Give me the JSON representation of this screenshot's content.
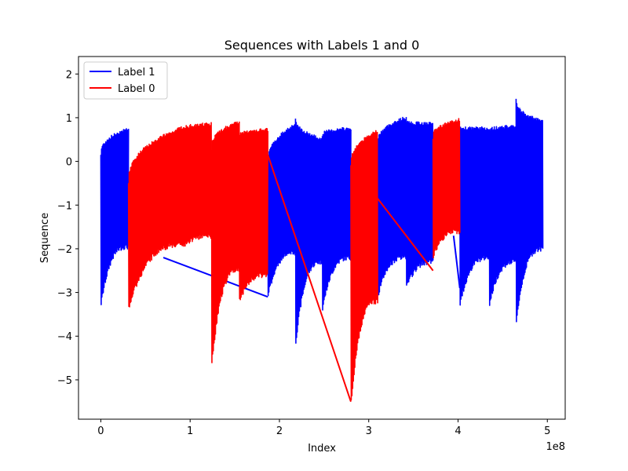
{
  "chart_data": {
    "type": "line",
    "title": "Sequences with Labels 1 and 0",
    "xlabel": "Index",
    "ylabel": "Sequence",
    "x_offset_text": "1e8",
    "xlim": [
      -0.25,
      5.2
    ],
    "ylim": [
      -5.9,
      2.4
    ],
    "x_unit_multiplier": 100000000,
    "xticks": [
      0,
      1,
      2,
      3,
      4,
      5
    ],
    "xtick_labels": [
      "0",
      "1",
      "2",
      "3",
      "4",
      "5"
    ],
    "yticks": [
      2,
      1,
      0,
      -1,
      -2,
      -3,
      -4,
      -5
    ],
    "ytick_labels": [
      "2",
      "1",
      "0",
      "−1",
      "−2",
      "−3",
      "−4",
      "−5"
    ],
    "grid": false,
    "legend_position": "top-left",
    "series": [
      {
        "name": "Label 1",
        "color": "#0000ff",
        "segments": [
          {
            "x_start": 0.0,
            "x_end": 0.31,
            "top_start": 0.15,
            "top_end": 0.75,
            "bottom_start": -3.3,
            "bottom_end": -1.95
          },
          {
            "x_start": 1.87,
            "x_end": 2.18,
            "top_start": -0.1,
            "top_end": 0.85,
            "bottom_start": -3.1,
            "bottom_end": -2.1
          },
          {
            "x_start": 2.18,
            "x_end": 2.48,
            "top_start": 1.0,
            "top_end": 0.5,
            "bottom_start": -4.2,
            "bottom_end": -2.3
          },
          {
            "x_start": 2.48,
            "x_end": 2.8,
            "top_start": 0.6,
            "top_end": 0.75,
            "bottom_start": -3.4,
            "bottom_end": -2.2
          },
          {
            "x_start": 3.1,
            "x_end": 3.42,
            "top_start": 0.4,
            "top_end": 1.0,
            "bottom_start": -3.1,
            "bottom_end": -2.2
          },
          {
            "x_start": 3.42,
            "x_end": 3.72,
            "top_start": 0.9,
            "top_end": 0.85,
            "bottom_start": -2.9,
            "bottom_end": -2.3
          },
          {
            "x_start": 4.02,
            "x_end": 4.35,
            "top_start": 0.75,
            "top_end": 0.75,
            "bottom_start": -3.3,
            "bottom_end": -2.2
          },
          {
            "x_start": 4.35,
            "x_end": 4.65,
            "top_start": 0.7,
            "top_end": 0.8,
            "bottom_start": -3.3,
            "bottom_end": -2.3
          },
          {
            "x_start": 4.65,
            "x_end": 4.95,
            "top_start": 1.4,
            "top_end": 0.9,
            "bottom_start": -3.7,
            "bottom_end": -2.0
          }
        ],
        "connectors": [
          [
            0.7,
            -2.2,
            1.87,
            -3.1
          ],
          [
            3.95,
            -1.7,
            4.02,
            -2.9
          ]
        ]
      },
      {
        "name": "Label 0",
        "color": "#ff0000",
        "segments": [
          {
            "x_start": 0.31,
            "x_end": 0.94,
            "top_start": -0.5,
            "top_end": 0.8,
            "bottom_start": -3.35,
            "bottom_end": -1.9
          },
          {
            "x_start": 0.94,
            "x_end": 1.24,
            "top_start": 0.75,
            "top_end": 0.85,
            "bottom_start": -1.9,
            "bottom_end": -1.7
          },
          {
            "x_start": 1.24,
            "x_end": 1.55,
            "top_start": 0.3,
            "top_end": 0.9,
            "bottom_start": -4.7,
            "bottom_end": -2.5
          },
          {
            "x_start": 1.55,
            "x_end": 1.87,
            "top_start": 0.6,
            "top_end": 0.72,
            "bottom_start": -3.2,
            "bottom_end": -2.6
          },
          {
            "x_start": 2.8,
            "x_end": 3.1,
            "top_start": -0.1,
            "top_end": 0.7,
            "bottom_start": -5.6,
            "bottom_end": -3.2
          },
          {
            "x_start": 3.72,
            "x_end": 4.02,
            "top_start": 0.55,
            "top_end": 0.95,
            "bottom_start": -2.2,
            "bottom_end": -1.6
          }
        ],
        "connectors": [
          [
            1.87,
            0.15,
            2.8,
            -5.5
          ],
          [
            3.1,
            -0.85,
            3.72,
            -2.5
          ]
        ]
      }
    ]
  }
}
